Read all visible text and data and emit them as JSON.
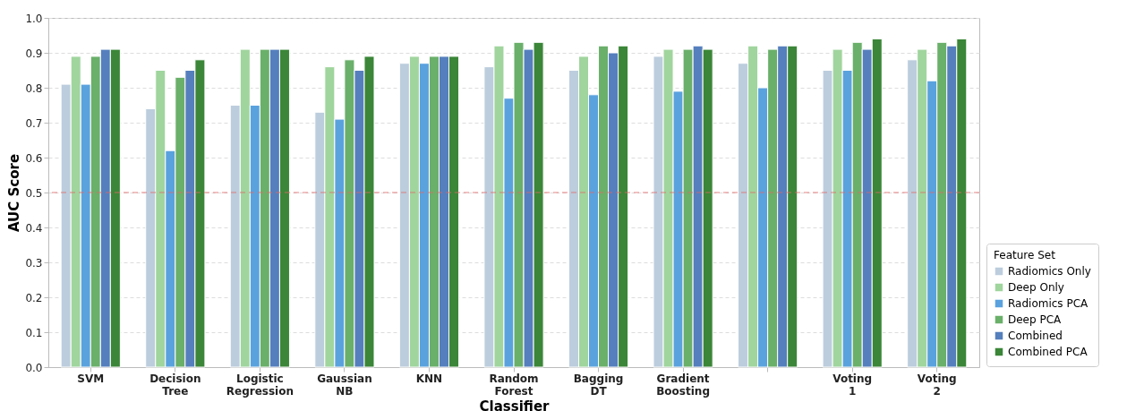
{
  "chart_data": {
    "type": "bar",
    "xlabel": "Classifier",
    "ylabel": "AUC Score",
    "legend_title": "Feature Set",
    "categories": [
      "SVM",
      "Decision Tree",
      "Logistic Regression",
      "Gaussian NB",
      "KNN",
      "Random Forest",
      "Bagging DT",
      "Gradient Boosting",
      null,
      "Voting 1",
      "Voting 2"
    ],
    "series": [
      {
        "name": "Radiomics Only",
        "color": "#bccddd",
        "values": [
          0.81,
          0.74,
          0.75,
          0.73,
          0.87,
          0.86,
          0.85,
          0.89,
          0.87,
          0.85,
          0.88
        ]
      },
      {
        "name": "Deep Only",
        "color": "#a0d59e",
        "values": [
          0.89,
          0.85,
          0.91,
          0.86,
          0.89,
          0.92,
          0.89,
          0.91,
          0.92,
          0.91,
          0.91
        ]
      },
      {
        "name": "Radiomics PCA",
        "color": "#5aa2de",
        "values": [
          0.81,
          0.62,
          0.75,
          0.71,
          0.87,
          0.77,
          0.78,
          0.79,
          0.8,
          0.85,
          0.82
        ]
      },
      {
        "name": "Deep PCA",
        "color": "#6aaf6a",
        "values": [
          0.89,
          0.83,
          0.91,
          0.88,
          0.89,
          0.93,
          0.92,
          0.91,
          0.91,
          0.93,
          0.93
        ]
      },
      {
        "name": "Combined",
        "color": "#557fbd",
        "values": [
          0.91,
          0.85,
          0.91,
          0.85,
          0.89,
          0.91,
          0.9,
          0.92,
          0.92,
          0.91,
          0.92
        ]
      },
      {
        "name": "Combined PCA",
        "color": "#3b8638",
        "values": [
          0.91,
          0.88,
          0.91,
          0.89,
          0.89,
          0.93,
          0.92,
          0.91,
          0.92,
          0.94,
          0.94
        ]
      }
    ],
    "ylim": [
      0,
      1.0
    ],
    "yticks": [
      {
        "value": 0,
        "label": "0.0"
      },
      0.1,
      0.2,
      0.3,
      0.4,
      0.5,
      0.6,
      0.7,
      0.8,
      0.9,
      {
        "value": 1,
        "label": "1.0"
      }
    ],
    "ref_lines": [
      {
        "axis": "y",
        "value": 0.5,
        "color": "#e06666",
        "line_style": "dashed"
      }
    ],
    "grid": "y",
    "legend": "bottom right"
  }
}
